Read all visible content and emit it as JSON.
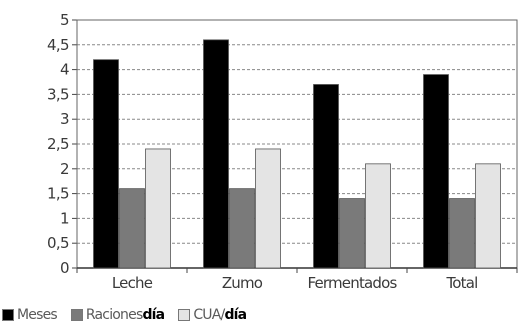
{
  "chart_data": {
    "type": "bar",
    "categories": [
      "Leche",
      "Zumo",
      "Fermentados",
      "Total"
    ],
    "series": [
      {
        "name": "Meses",
        "values": [
          4.2,
          4.6,
          3.7,
          3.9
        ],
        "color": "#000000"
      },
      {
        "name": "Raciones/día",
        "values": [
          1.6,
          1.6,
          1.4,
          1.4
        ],
        "color": "#7a7a7a"
      },
      {
        "name": "CUA/día",
        "values": [
          2.4,
          2.4,
          2.1,
          2.1
        ],
        "color": "#e4e4e4"
      }
    ],
    "ylim": [
      0,
      5
    ],
    "yticks": [
      "0",
      "0,5",
      "1",
      "1,5",
      "2",
      "2,5",
      "3",
      "3,5",
      "4",
      "4,5",
      "5"
    ],
    "grid": true,
    "legend_position": "bottom-left",
    "title": "",
    "xlabel": "",
    "ylabel": ""
  },
  "legend": [
    {
      "prefix": "Meses",
      "bold": ""
    },
    {
      "prefix": "Raciones",
      "bold": "día"
    },
    {
      "prefix": "CUA/",
      "bold": "día"
    }
  ]
}
